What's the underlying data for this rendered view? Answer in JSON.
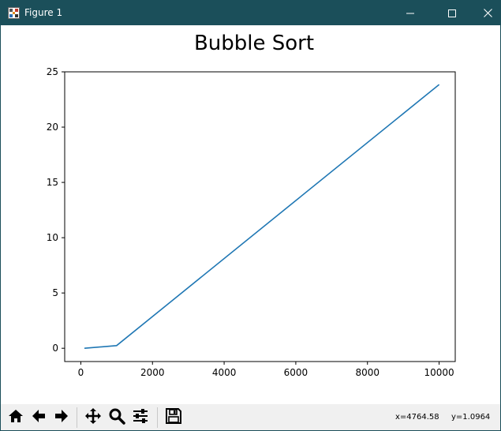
{
  "window": {
    "title": "Figure 1",
    "app_icon": "matplotlib-figure-icon",
    "controls": [
      "minimize-icon",
      "maximize-icon",
      "close-icon"
    ]
  },
  "toolbar": {
    "buttons": [
      "home-icon",
      "back-arrow-icon",
      "forward-arrow-icon",
      "pan-icon",
      "zoom-magnifier-icon",
      "configure-subplots-icon",
      "save-floppy-icon"
    ],
    "cursor_x": "x=4764.58",
    "cursor_y": "y=1.0964"
  },
  "chart_data": {
    "type": "line",
    "title": "Bubble Sort",
    "xlabel": "",
    "ylabel": "",
    "xlim": [
      -450,
      10450
    ],
    "ylim": [
      -1.2,
      25
    ],
    "xticks": [
      0,
      2000,
      4000,
      6000,
      8000,
      10000
    ],
    "xtick_labels": [
      "0",
      "2000",
      "4000",
      "6000",
      "8000",
      "10000"
    ],
    "yticks": [
      0,
      5,
      10,
      15,
      20,
      25
    ],
    "ytick_labels": [
      "0",
      "5",
      "10",
      "15",
      "20",
      "25"
    ],
    "grid": false,
    "line_color": "#1f77b4",
    "series": [
      {
        "x": [
          100,
          1000,
          10000
        ],
        "y": [
          0.0,
          0.24,
          23.85
        ]
      }
    ]
  }
}
